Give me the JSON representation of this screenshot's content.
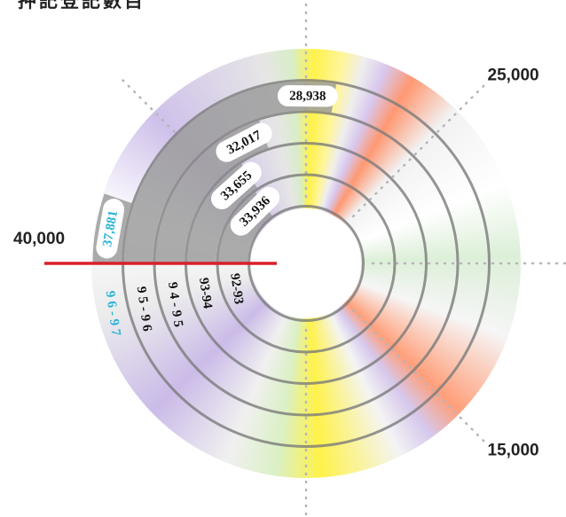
{
  "chart_data": {
    "type": "radial-bar",
    "title": "押記登記數目",
    "categories": [
      "92-93",
      "93-94",
      "94-95",
      "95-96",
      "96-97"
    ],
    "values": [
      33936,
      33655,
      32017,
      28938,
      37881
    ],
    "value_labels": [
      "33,936",
      "33,655",
      "32,017",
      "28,938",
      "37,881"
    ],
    "label_colors": [
      "#111111",
      "#111111",
      "#111111",
      "#111111",
      "#29b3d6"
    ],
    "color": "#9c9c9c",
    "ticks": [
      {
        "value": 40000,
        "label": "40,000"
      },
      {
        "value": 25000,
        "label": "25,000"
      },
      {
        "value": 15000,
        "label": "15,000"
      }
    ],
    "minor_ticks": [
      35000,
      30000,
      20000,
      10000
    ],
    "full_circle": 40000,
    "zero_line_color": "#d8202c"
  }
}
